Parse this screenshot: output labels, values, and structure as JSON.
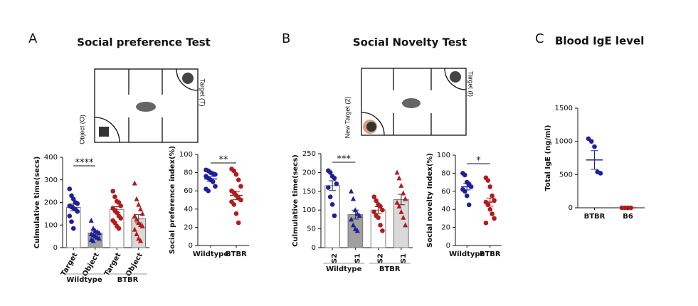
{
  "panels": [
    {
      "label": "A",
      "title": "Social preference Test",
      "diagram_labels": [
        "Target (T)",
        "Object (O)"
      ]
    },
    {
      "label": "B",
      "title": "Social Novelty Test",
      "diagram_labels": [
        "Target (I)",
        "New Target (2)"
      ]
    },
    {
      "label": "C",
      "title": "Blood IgE level"
    }
  ],
  "chart_data": [
    {
      "type": "bar",
      "ylabel": "Culmulative time(secs)",
      "ylim": [
        0,
        400
      ],
      "yticks": [
        0,
        100,
        200,
        300,
        400
      ],
      "categories": [
        "Target",
        "Object",
        "Target",
        "Object"
      ],
      "groups": [
        "Wildtype",
        "BTBR"
      ],
      "values": [
        178,
        65,
        168,
        128
      ],
      "errors": [
        15,
        8,
        13,
        18
      ],
      "points": [
        [
          260,
          230,
          215,
          200,
          195,
          185,
          180,
          175,
          170,
          160,
          140,
          115,
          85
        ],
        [
          120,
          85,
          75,
          70,
          65,
          60,
          55,
          50,
          45,
          40,
          35,
          30
        ],
        [
          250,
          225,
          205,
          200,
          185,
          175,
          165,
          155,
          140,
          130,
          120,
          110,
          95,
          85
        ],
        [
          285,
          215,
          190,
          170,
          150,
          140,
          125,
          110,
          100,
          95,
          80,
          60,
          40,
          30
        ]
      ],
      "colors": [
        "#1f1f9c",
        "#1f1f9c",
        "#b31b1b",
        "#b31b1b"
      ],
      "markers": [
        "circle",
        "triangle",
        "circle",
        "triangle"
      ],
      "bar_fills": [
        "#ffffff",
        "#a0a0a0",
        "#ffffff",
        "#d9d9d9"
      ],
      "significance": "****"
    },
    {
      "type": "dot",
      "ylabel": "Social preference index(%)",
      "ylim": [
        0,
        100
      ],
      "yticks": [
        0,
        20,
        40,
        60,
        80,
        100
      ],
      "categories": [
        "Wildtype",
        "BTBR"
      ],
      "values": [
        73,
        55
      ],
      "errors": [
        2.5,
        4.5
      ],
      "points": [
        [
          83,
          82,
          80,
          79,
          78,
          76,
          74,
          72,
          70,
          65,
          62,
          60
        ],
        [
          84,
          82,
          78,
          72,
          65,
          60,
          58,
          55,
          52,
          50,
          48,
          45,
          35,
          25
        ]
      ],
      "colors": [
        "#1f1f9c",
        "#b31b1b"
      ],
      "markers": [
        "circle",
        "circle"
      ],
      "significance": "**"
    },
    {
      "type": "bar",
      "ylabel": "Culmulative time(secs)",
      "ylim": [
        0,
        250
      ],
      "yticks": [
        0,
        50,
        100,
        150,
        200,
        250
      ],
      "categories": [
        "S2",
        "S1",
        "S2",
        "S1"
      ],
      "groups": [
        "Wildtype",
        "BTBR"
      ],
      "values": [
        165,
        88,
        100,
        128
      ],
      "errors": [
        13,
        12,
        9,
        14
      ],
      "points": [
        [
          205,
          200,
          190,
          185,
          170,
          160,
          135,
          115,
          85
        ],
        [
          150,
          130,
          100,
          90,
          85,
          75,
          60,
          50,
          45
        ],
        [
          135,
          125,
          115,
          110,
          100,
          95,
          85,
          80,
          60,
          45
        ],
        [
          200,
          185,
          165,
          145,
          130,
          120,
          110,
          95,
          80,
          60
        ]
      ],
      "colors": [
        "#1f1f9c",
        "#1f1f9c",
        "#b31b1b",
        "#b31b1b"
      ],
      "markers": [
        "circle",
        "triangle",
        "circle",
        "triangle"
      ],
      "bar_fills": [
        "#ffffff",
        "#a0a0a0",
        "#ffffff",
        "#d9d9d9"
      ],
      "significance": "***"
    },
    {
      "type": "dot",
      "ylabel": "Social novelty Index(%)",
      "ylim": [
        0,
        100
      ],
      "yticks": [
        0,
        20,
        40,
        60,
        80,
        100
      ],
      "categories": [
        "Wildtype",
        "BTBR"
      ],
      "values": [
        65,
        48
      ],
      "errors": [
        3.5,
        4.5
      ],
      "points": [
        [
          80,
          78,
          70,
          68,
          65,
          62,
          60,
          55,
          45
        ],
        [
          75,
          72,
          65,
          55,
          50,
          48,
          45,
          40,
          35,
          30,
          25
        ]
      ],
      "colors": [
        "#1f1f9c",
        "#b31b1b"
      ],
      "markers": [
        "circle",
        "circle"
      ],
      "significance": "*"
    },
    {
      "type": "dot",
      "ylabel": "Total IgE (ng/ml)",
      "ylim": [
        0,
        1500
      ],
      "yticks": [
        0,
        500,
        1000,
        1500
      ],
      "categories": [
        "BTBR",
        "B6"
      ],
      "values": [
        720,
        0
      ],
      "errors": [
        140,
        0
      ],
      "points": [
        [
          1040,
          1000,
          920,
          540,
          520
        ],
        [
          0,
          0,
          0,
          0
        ]
      ],
      "colors": [
        "#1f1f9c",
        "#b31b1b"
      ],
      "markers": [
        "circle",
        "circle"
      ]
    }
  ]
}
